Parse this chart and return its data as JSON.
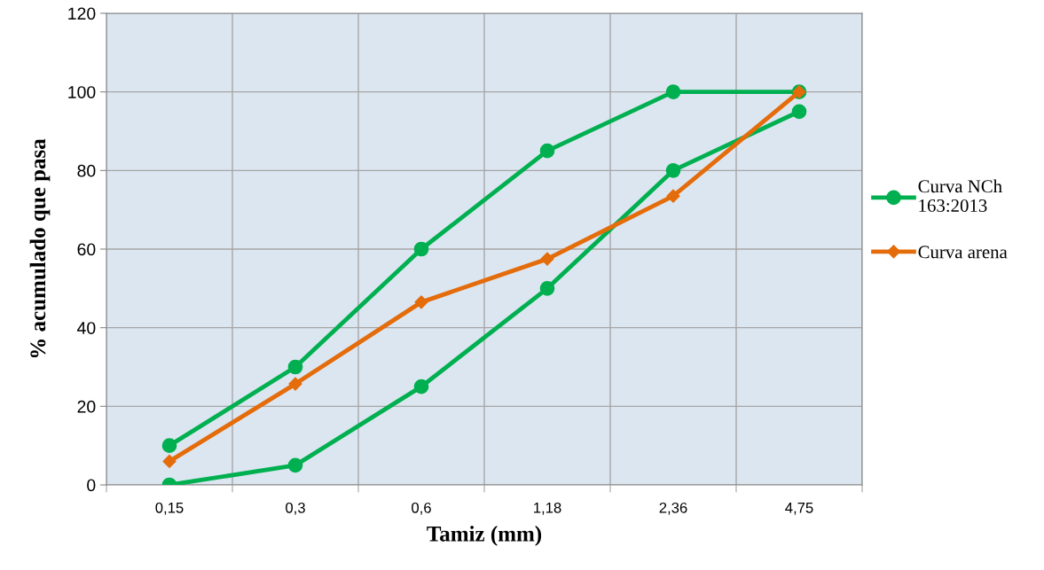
{
  "chart_data": {
    "type": "line",
    "xlabel": "Tamiz (mm)",
    "ylabel": "% acumulado que pasa",
    "categories": [
      "0,15",
      "0,3",
      "0,6",
      "1,18",
      "2,36",
      "4,75"
    ],
    "series": [
      {
        "name": "Curva NCh\n163:2013",
        "color": "#00b050",
        "marker": "circle",
        "values": [
          10,
          30,
          60,
          85,
          100,
          100
        ]
      },
      {
        "color": "#00b050",
        "marker": "circle",
        "values": [
          0,
          5,
          25,
          50,
          80,
          95
        ]
      },
      {
        "name": "Curva arena",
        "color": "#e46c0a",
        "marker": "diamond",
        "values": [
          6,
          25.7,
          46.5,
          57.5,
          73.5,
          100
        ]
      }
    ],
    "ylim": [
      0,
      120
    ],
    "yticks": [
      0,
      20,
      40,
      60,
      80,
      100,
      120
    ],
    "grid": true,
    "legend": "right"
  }
}
